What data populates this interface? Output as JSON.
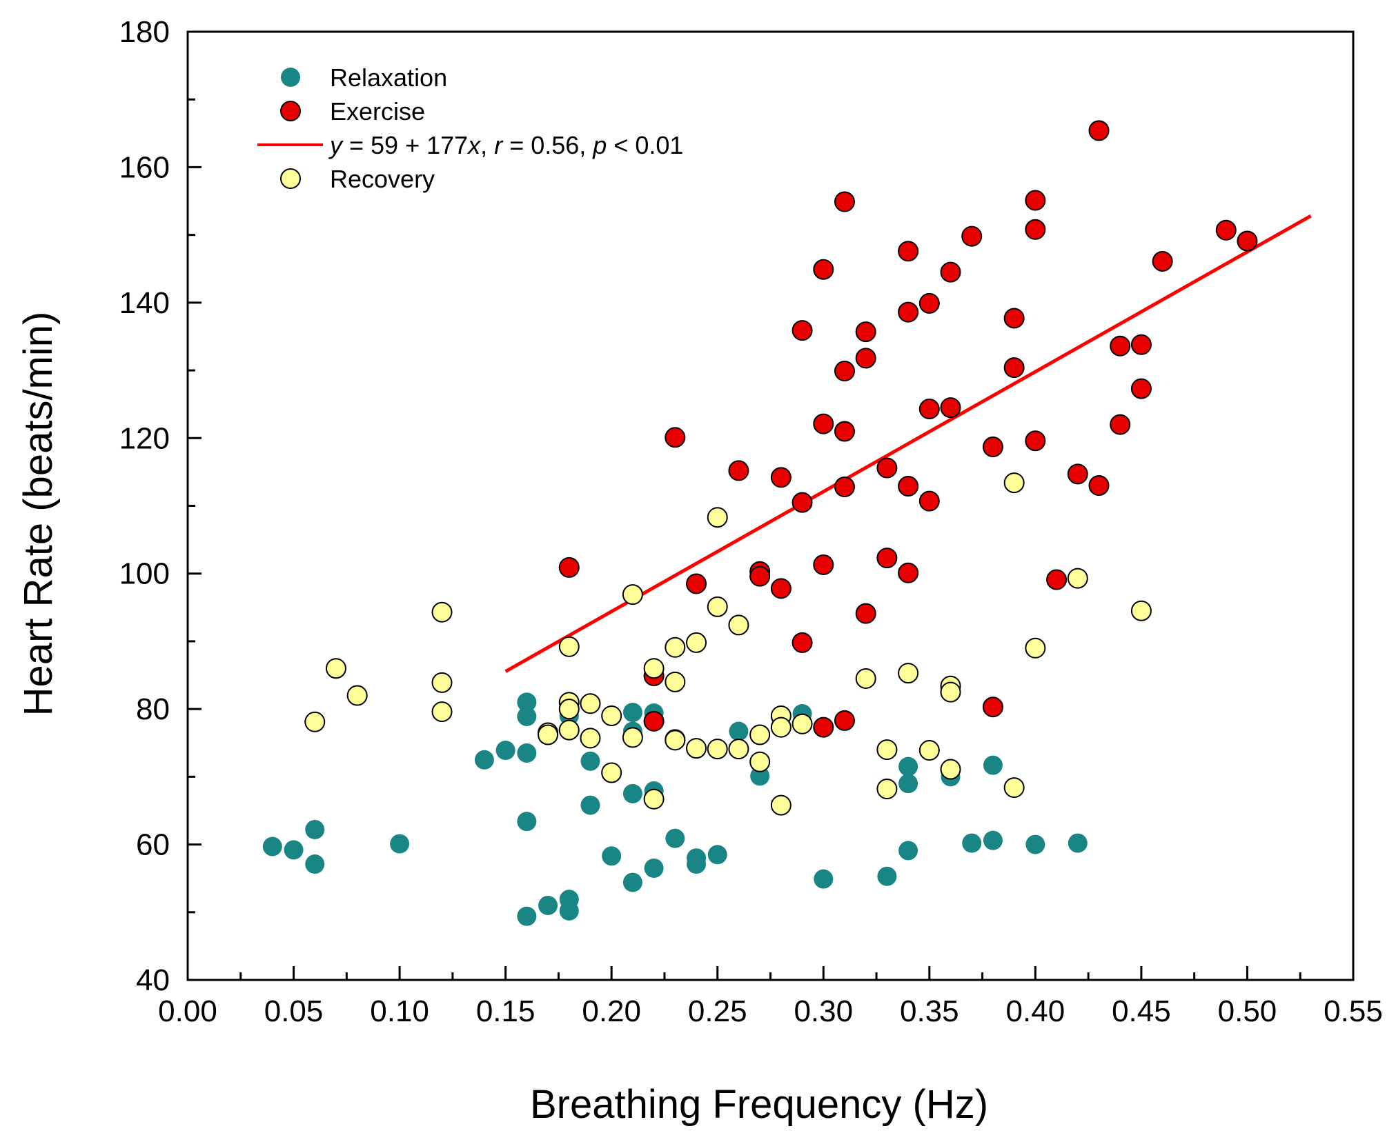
{
  "chart_data": {
    "type": "scatter",
    "title": "",
    "xlabel": "Breathing Frequency (Hz)",
    "ylabel": "Heart Rate (beats/min)",
    "xlim": [
      0.0,
      0.55
    ],
    "ylim": [
      40,
      180
    ],
    "x_ticks": [
      "0.00",
      "0.05",
      "0.10",
      "0.15",
      "0.20",
      "0.25",
      "0.30",
      "0.35",
      "0.40",
      "0.45",
      "0.50",
      "0.55"
    ],
    "y_ticks": [
      "40",
      "60",
      "80",
      "100",
      "120",
      "140",
      "160",
      "180"
    ],
    "grid": false,
    "legend_position": "top-left",
    "series": [
      {
        "name": "Relaxation",
        "color": "#1a8585",
        "points": [
          [
            0.04,
            59.7
          ],
          [
            0.05,
            59.2
          ],
          [
            0.06,
            62.2
          ],
          [
            0.06,
            57.1
          ],
          [
            0.1,
            60.1
          ],
          [
            0.14,
            72.5
          ],
          [
            0.15,
            73.9
          ],
          [
            0.16,
            81.0
          ],
          [
            0.16,
            78.9
          ],
          [
            0.16,
            73.5
          ],
          [
            0.16,
            63.4
          ],
          [
            0.16,
            49.4
          ],
          [
            0.17,
            51.0
          ],
          [
            0.18,
            51.9
          ],
          [
            0.18,
            50.2
          ],
          [
            0.18,
            79.0
          ],
          [
            0.19,
            72.3
          ],
          [
            0.19,
            65.8
          ],
          [
            0.2,
            58.3
          ],
          [
            0.21,
            79.5
          ],
          [
            0.21,
            76.7
          ],
          [
            0.21,
            67.5
          ],
          [
            0.21,
            54.4
          ],
          [
            0.22,
            79.4
          ],
          [
            0.22,
            67.9
          ],
          [
            0.22,
            56.5
          ],
          [
            0.23,
            60.9
          ],
          [
            0.24,
            58.0
          ],
          [
            0.24,
            57.1
          ],
          [
            0.25,
            58.5
          ],
          [
            0.26,
            76.7
          ],
          [
            0.27,
            70.1
          ],
          [
            0.29,
            79.3
          ],
          [
            0.3,
            54.9
          ],
          [
            0.33,
            55.3
          ],
          [
            0.34,
            71.5
          ],
          [
            0.34,
            69.0
          ],
          [
            0.34,
            59.1
          ],
          [
            0.36,
            70.0
          ],
          [
            0.37,
            60.2
          ],
          [
            0.38,
            71.7
          ],
          [
            0.38,
            60.6
          ],
          [
            0.4,
            60.0
          ],
          [
            0.42,
            60.2
          ]
        ]
      },
      {
        "name": "Exercise",
        "color": "#e80000",
        "points": [
          [
            0.18,
            100.9
          ],
          [
            0.22,
            78.2
          ],
          [
            0.22,
            84.9
          ],
          [
            0.23,
            120.1
          ],
          [
            0.23,
            75.5
          ],
          [
            0.24,
            98.5
          ],
          [
            0.26,
            115.2
          ],
          [
            0.27,
            100.3
          ],
          [
            0.27,
            99.6
          ],
          [
            0.28,
            114.2
          ],
          [
            0.28,
            97.8
          ],
          [
            0.29,
            135.9
          ],
          [
            0.29,
            110.5
          ],
          [
            0.29,
            89.8
          ],
          [
            0.3,
            144.9
          ],
          [
            0.3,
            122.1
          ],
          [
            0.3,
            101.3
          ],
          [
            0.3,
            77.3
          ],
          [
            0.31,
            154.9
          ],
          [
            0.31,
            129.9
          ],
          [
            0.31,
            121.0
          ],
          [
            0.31,
            112.8
          ],
          [
            0.31,
            78.3
          ],
          [
            0.32,
            135.7
          ],
          [
            0.32,
            131.8
          ],
          [
            0.32,
            94.1
          ],
          [
            0.33,
            115.6
          ],
          [
            0.33,
            102.3
          ],
          [
            0.34,
            147.6
          ],
          [
            0.34,
            138.6
          ],
          [
            0.34,
            112.9
          ],
          [
            0.34,
            100.1
          ],
          [
            0.35,
            139.9
          ],
          [
            0.35,
            124.3
          ],
          [
            0.35,
            110.7
          ],
          [
            0.36,
            144.5
          ],
          [
            0.36,
            124.5
          ],
          [
            0.37,
            149.8
          ],
          [
            0.38,
            118.7
          ],
          [
            0.38,
            80.3
          ],
          [
            0.39,
            137.7
          ],
          [
            0.39,
            130.4
          ],
          [
            0.4,
            155.1
          ],
          [
            0.4,
            150.8
          ],
          [
            0.4,
            119.6
          ],
          [
            0.41,
            99.1
          ],
          [
            0.42,
            114.7
          ],
          [
            0.43,
            165.4
          ],
          [
            0.43,
            113.0
          ],
          [
            0.44,
            133.6
          ],
          [
            0.44,
            122.0
          ],
          [
            0.45,
            133.8
          ],
          [
            0.45,
            127.3
          ],
          [
            0.46,
            146.1
          ],
          [
            0.49,
            150.7
          ],
          [
            0.5,
            149.1
          ]
        ]
      },
      {
        "name": "Recovery",
        "color": "#ffff99",
        "points": [
          [
            0.06,
            78.1
          ],
          [
            0.07,
            86.0
          ],
          [
            0.08,
            82.0
          ],
          [
            0.12,
            94.3
          ],
          [
            0.12,
            83.9
          ],
          [
            0.12,
            79.6
          ],
          [
            0.17,
            76.5
          ],
          [
            0.17,
            76.2
          ],
          [
            0.18,
            89.2
          ],
          [
            0.18,
            81.0
          ],
          [
            0.18,
            80.0
          ],
          [
            0.18,
            76.9
          ],
          [
            0.19,
            80.8
          ],
          [
            0.19,
            75.7
          ],
          [
            0.2,
            79.0
          ],
          [
            0.2,
            70.6
          ],
          [
            0.21,
            96.9
          ],
          [
            0.21,
            75.8
          ],
          [
            0.22,
            86.0
          ],
          [
            0.22,
            66.7
          ],
          [
            0.23,
            89.1
          ],
          [
            0.23,
            84.0
          ],
          [
            0.23,
            75.4
          ],
          [
            0.24,
            89.8
          ],
          [
            0.24,
            74.2
          ],
          [
            0.25,
            108.3
          ],
          [
            0.25,
            95.1
          ],
          [
            0.25,
            74.1
          ],
          [
            0.26,
            92.4
          ],
          [
            0.26,
            74.1
          ],
          [
            0.27,
            76.2
          ],
          [
            0.27,
            72.2
          ],
          [
            0.28,
            79.0
          ],
          [
            0.28,
            77.3
          ],
          [
            0.28,
            65.8
          ],
          [
            0.29,
            77.8
          ],
          [
            0.32,
            84.5
          ],
          [
            0.33,
            74.0
          ],
          [
            0.33,
            68.2
          ],
          [
            0.34,
            85.3
          ],
          [
            0.35,
            73.9
          ],
          [
            0.36,
            83.4
          ],
          [
            0.36,
            82.5
          ],
          [
            0.36,
            71.1
          ],
          [
            0.39,
            113.4
          ],
          [
            0.39,
            68.4
          ],
          [
            0.4,
            89.0
          ],
          [
            0.42,
            99.3
          ],
          [
            0.45,
            94.5
          ]
        ]
      }
    ],
    "fit": {
      "name": "y = 59 + 177x, r = 0.56, p < 0.01",
      "color": "#ff0000",
      "intercept": 59,
      "slope": 177,
      "x_range": [
        0.15,
        0.53
      ]
    },
    "legend": {
      "relaxation": "Relaxation",
      "exercise": "Exercise",
      "recovery": "Recovery",
      "fit_y": "y",
      "fit_eq": " = 59 + 177",
      "fit_x": "x",
      "fit_sep1": ", ",
      "fit_r": "r",
      "fit_r_val": " = 0.56, ",
      "fit_p": "p",
      "fit_p_val": " < 0.01"
    }
  }
}
